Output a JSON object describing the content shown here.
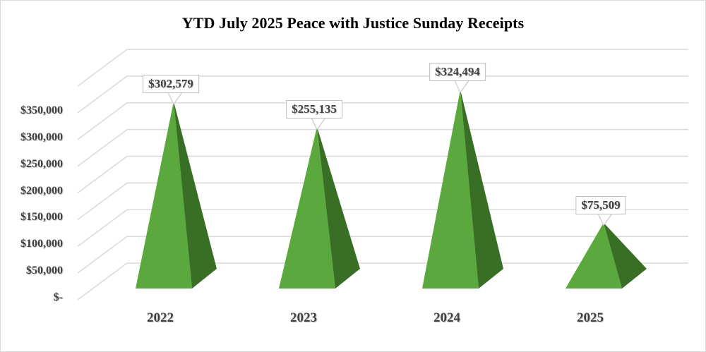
{
  "chart_data": {
    "type": "bar",
    "style": "3d-pyramid",
    "title": "YTD July 2025 Peace with Justice Sunday Receipts",
    "xlabel": "",
    "ylabel": "",
    "categories": [
      "2022",
      "2023",
      "2024",
      "2025"
    ],
    "values": [
      302579,
      255135,
      324494,
      75509
    ],
    "data_labels": [
      "$302,579",
      "$255,135",
      "$324,494",
      "$75,509"
    ],
    "ylim": [
      0,
      400000
    ],
    "y_ticks": [
      0,
      50000,
      100000,
      150000,
      200000,
      250000,
      300000,
      350000
    ],
    "y_tick_labels": [
      "$-",
      "$50,000",
      "$100,000",
      "$150,000",
      "$200,000",
      "$250,000",
      "$300,000",
      "$350,000"
    ],
    "grid": true,
    "legend": null,
    "colors": {
      "front": "#5aa83e",
      "side": "#386f24",
      "grid": "#d9d9d9"
    }
  }
}
